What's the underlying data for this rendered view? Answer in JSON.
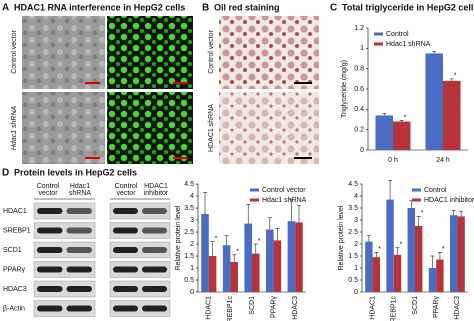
{
  "panels": {
    "A": {
      "letter": "A",
      "title": "HDAC1 RNA interference in HepG2 cells",
      "rows": [
        "Control vector",
        "Hdac1 shRNA"
      ]
    },
    "B": {
      "letter": "B",
      "title": "Oil red staining",
      "rows": [
        "Control vector",
        "HDAC1 shRNA"
      ]
    },
    "C": {
      "letter": "C",
      "title": "Total triglyceride in HepG2 cells"
    },
    "D": {
      "letter": "D",
      "title": "Protein levels in HepG2 cells",
      "columns": [
        "Control vector",
        "Hdac1 shRNA",
        "Control vector",
        "HDAC1 inhibitor"
      ],
      "proteins": [
        "HDAC1",
        "SREBP1",
        "SCD1",
        "PPARγ",
        "HDAC3",
        "β-Actin"
      ]
    }
  },
  "chart_data": [
    {
      "type": "bar",
      "ylabel": "Triglyceride (mg/g)",
      "categories": [
        "0 h",
        "24 h"
      ],
      "ylim": [
        0,
        1.2
      ],
      "yticks": [
        0,
        0.2,
        0.4,
        0.6,
        0.8,
        1,
        1.2
      ],
      "legend": "top-left",
      "series": [
        {
          "name": "Control",
          "color": "#4a6cc4",
          "values": [
            0.34,
            0.95
          ],
          "errors": [
            0.02,
            0.02
          ],
          "significance": [
            null,
            null
          ]
        },
        {
          "name": "Hdac1 shRNA",
          "color": "#b5343a",
          "values": [
            0.28,
            0.68
          ],
          "errors": [
            0.01,
            0.02
          ],
          "significance": [
            "*",
            "*"
          ]
        }
      ]
    },
    {
      "type": "bar",
      "ylabel": "Relative protein level",
      "categories": [
        "HDAC1",
        "SREBP1c",
        "SCD1",
        "PPARγ",
        "HDAC3"
      ],
      "ylim": [
        0,
        4.5
      ],
      "yticks": [
        0,
        0.5,
        1,
        1.5,
        2,
        2.5,
        3,
        3.5,
        4,
        4.5
      ],
      "legend": "top-right",
      "series": [
        {
          "name": "Control vector",
          "color": "#4a6cc4",
          "values": [
            3.25,
            1.95,
            2.85,
            2.6,
            2.95
          ],
          "errors": [
            0.9,
            0.4,
            0.8,
            0.5,
            0.9
          ],
          "significance": [
            null,
            null,
            null,
            null,
            null
          ]
        },
        {
          "name": "Hdac1 shRNA",
          "color": "#b5343a",
          "values": [
            1.5,
            1.25,
            1.6,
            2.15,
            2.9
          ],
          "errors": [
            0.6,
            0.3,
            0.4,
            0.5,
            0.7
          ],
          "significance": [
            "*",
            "*",
            "*",
            null,
            null
          ]
        }
      ]
    },
    {
      "type": "bar",
      "ylabel": "Relative protein level",
      "categories": [
        "HDAC1",
        "SREBP1c",
        "SCD1",
        "PPARγ",
        "HDAC3"
      ],
      "ylim": [
        0,
        4.5
      ],
      "yticks": [
        0,
        0.5,
        1,
        1.5,
        2,
        2.5,
        3,
        3.5,
        4,
        4.5
      ],
      "legend": "top-right",
      "series": [
        {
          "name": "Control",
          "color": "#4a6cc4",
          "values": [
            2.1,
            3.85,
            3.5,
            1.0,
            3.2
          ],
          "errors": [
            0.25,
            0.8,
            0.3,
            0.5,
            0.2
          ],
          "significance": [
            null,
            null,
            null,
            null,
            null
          ]
        },
        {
          "name": "HDAC1 inhibitor",
          "color": "#b5343a",
          "values": [
            1.45,
            1.55,
            2.75,
            1.35,
            3.15
          ],
          "errors": [
            0.2,
            0.3,
            0.4,
            0.3,
            0.2
          ],
          "significance": [
            "*",
            "*",
            "*",
            "*",
            null
          ]
        }
      ]
    }
  ]
}
